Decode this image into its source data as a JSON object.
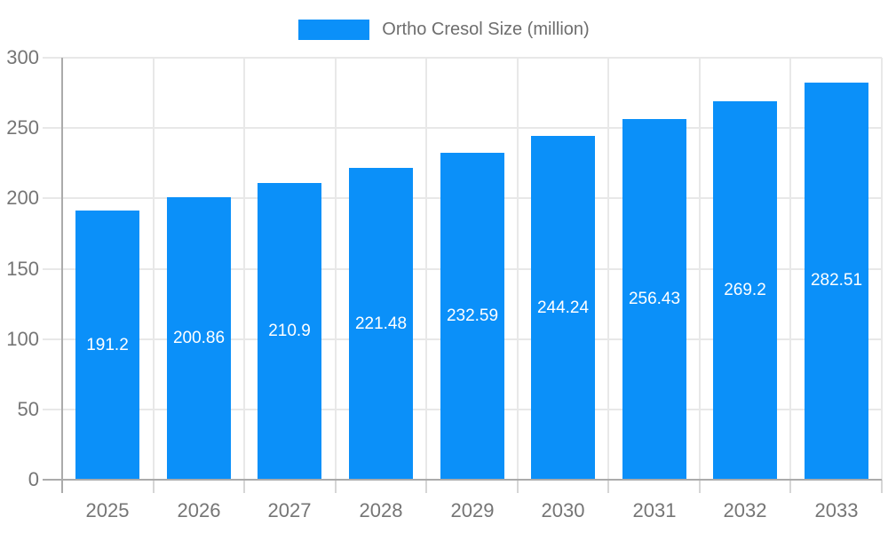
{
  "legend": {
    "label": "Ortho Cresol Size (million)",
    "swatch_color": "#0b90f9"
  },
  "chart_data": {
    "type": "bar",
    "title": "",
    "xlabel": "",
    "ylabel": "",
    "categories": [
      "2025",
      "2026",
      "2027",
      "2028",
      "2029",
      "2030",
      "2031",
      "2032",
      "2033"
    ],
    "series": [
      {
        "name": "Ortho Cresol Size (million)",
        "values": [
          191.2,
          200.86,
          210.9,
          221.48,
          232.59,
          244.24,
          256.43,
          269.2,
          282.51
        ]
      }
    ],
    "ylim": [
      0,
      300
    ],
    "yticks": [
      0,
      50,
      100,
      150,
      200,
      250,
      300
    ],
    "grid": true,
    "legend_position": "top-center",
    "bar_color": "#0b90f9",
    "value_label_color": "#ffffff",
    "axis_color": "#ababab",
    "grid_color": "#e8e8e8",
    "tick_label_color": "#757575"
  }
}
